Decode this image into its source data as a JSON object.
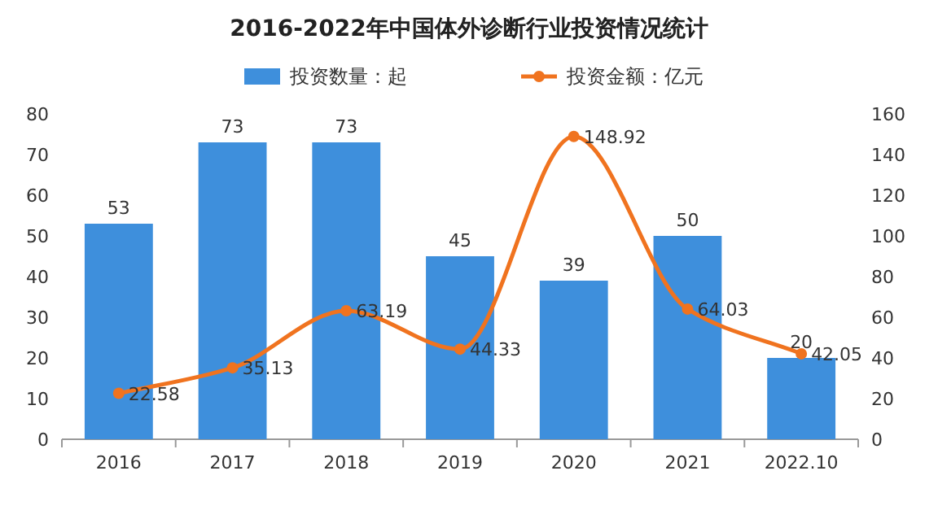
{
  "chart_data": {
    "type": "bar",
    "title": "2016-2022年中国体外诊断行业投资情况统计",
    "categories": [
      "2016",
      "2017",
      "2018",
      "2019",
      "2020",
      "2021",
      "2022.10"
    ],
    "series": [
      {
        "name": "投资数量：起",
        "color": "#3e8fdc",
        "values": [
          53,
          73,
          73,
          45,
          39,
          50,
          20
        ]
      },
      {
        "name": "投资金额：亿元",
        "type": "line",
        "axis": "y2",
        "color": "#f0731f",
        "marker": "circle",
        "values": [
          22.58,
          35.13,
          63.19,
          44.33,
          148.92,
          64.03,
          42.05
        ]
      }
    ],
    "ylim": [
      0,
      80
    ],
    "yticks": [
      0,
      10,
      20,
      30,
      40,
      50,
      60,
      70,
      80
    ],
    "y2lim": [
      0,
      160
    ],
    "y2ticks": [
      0,
      20,
      40,
      60,
      80,
      100,
      120,
      140,
      160
    ],
    "data_labels": true,
    "legend": "top",
    "grid": false
  }
}
